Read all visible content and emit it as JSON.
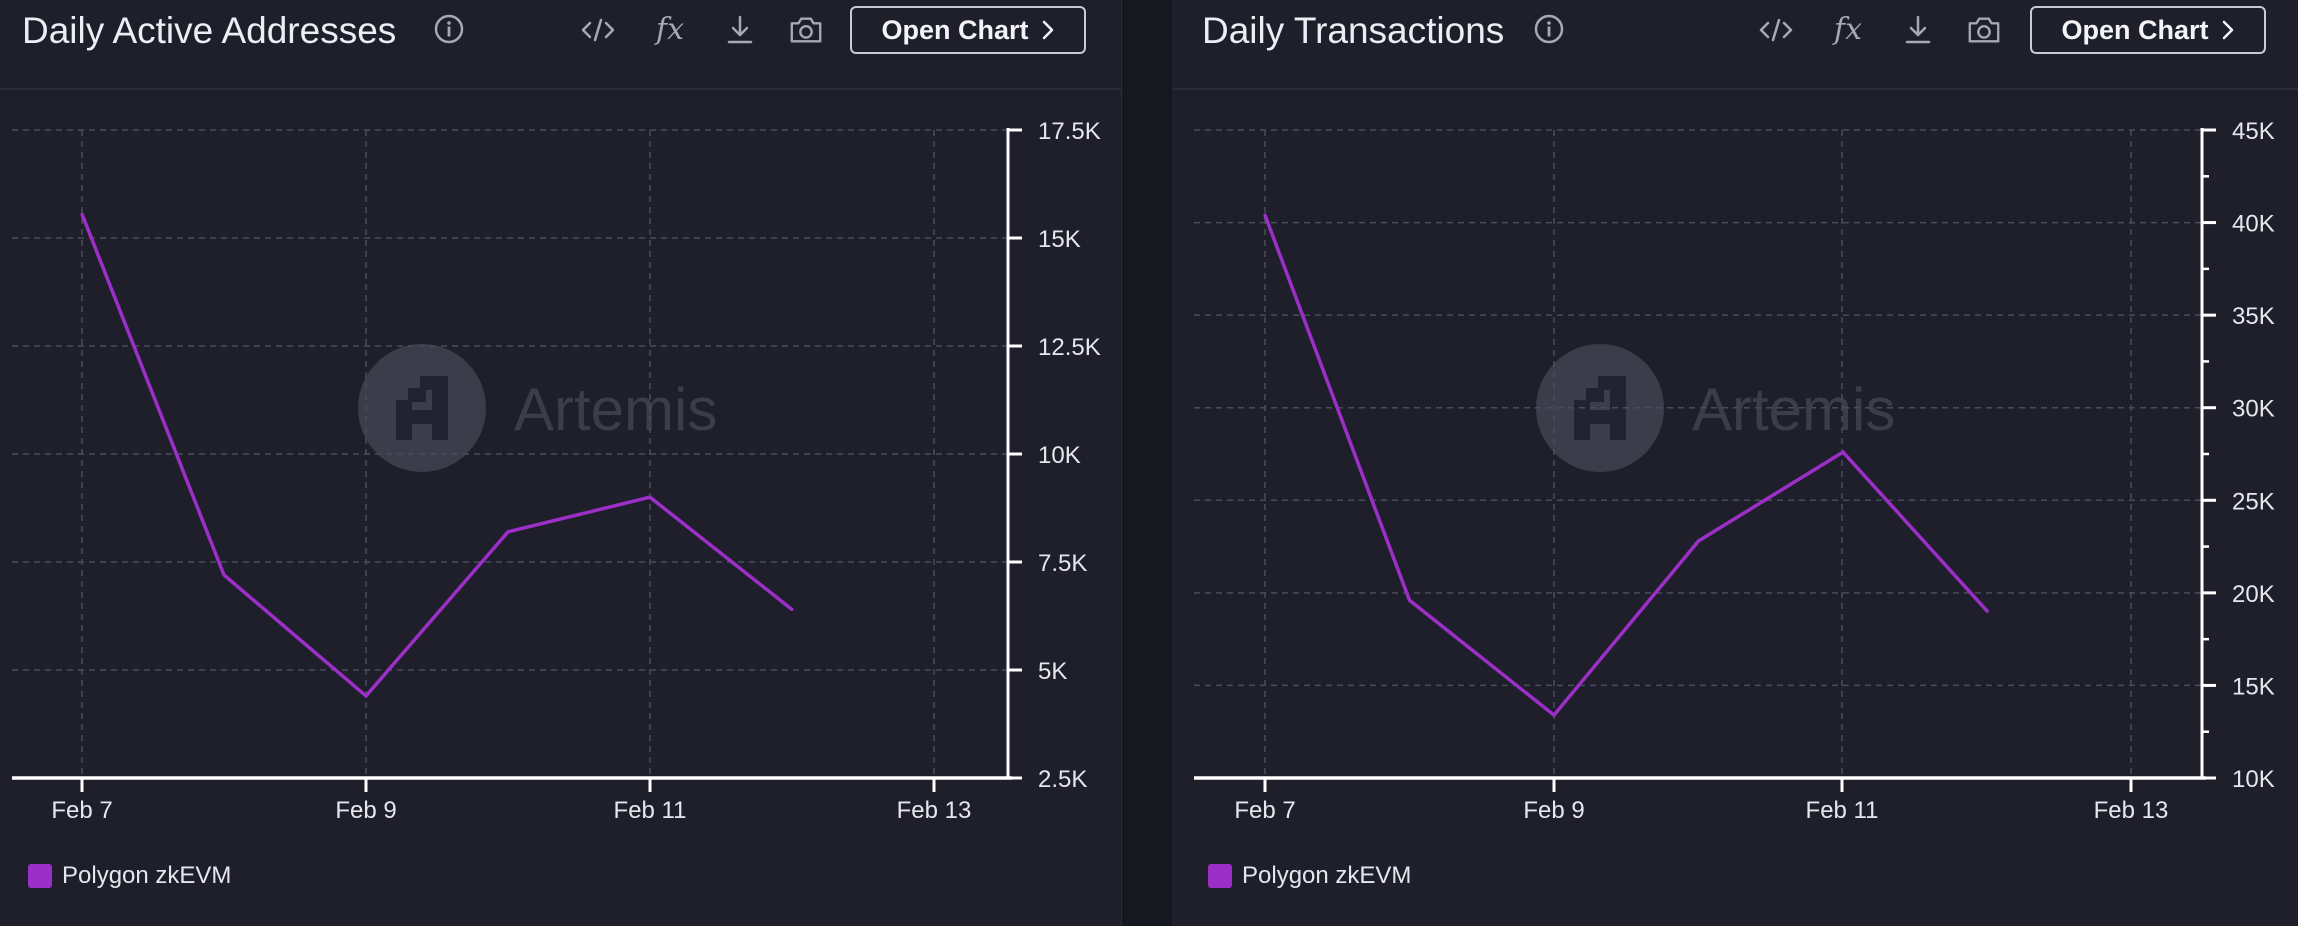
{
  "colors": {
    "series": "#9b2fc8",
    "grid": "#4a4c5c",
    "axis": "#ffffff",
    "panel_bg": "#1e1f2b",
    "watermark": "#3b3d4b"
  },
  "toolbar": {
    "icons": [
      "code-icon",
      "fx-icon",
      "download-icon",
      "camera-icon"
    ],
    "fx_label": "fx",
    "open_chart_label": "Open Chart"
  },
  "watermark": {
    "text": "Artemis"
  },
  "chart_data": [
    {
      "type": "line",
      "title": "Daily Active Addresses",
      "x": [
        "Feb 7",
        "Feb 8",
        "Feb 9",
        "Feb 10",
        "Feb 11",
        "Feb 12"
      ],
      "x_tick_labels": [
        "Feb 7",
        "Feb 9",
        "Feb 11",
        "Feb 13"
      ],
      "xlim": [
        "Feb 6.75",
        "Feb 13.25"
      ],
      "series": [
        {
          "name": "Polygon zkEVM",
          "values": [
            15550,
            7200,
            4400,
            8200,
            9000,
            6400
          ]
        }
      ],
      "ylim": [
        2500,
        17500
      ],
      "y_ticks": [
        2500,
        5000,
        7500,
        10000,
        12500,
        15000,
        17500
      ],
      "y_tick_labels": [
        "2.5K",
        "5K",
        "7.5K",
        "10K",
        "12.5K",
        "15K",
        "17.5K"
      ],
      "y_axis_side": "right",
      "grid": true,
      "legend": "bottom-left"
    },
    {
      "type": "line",
      "title": "Daily Transactions",
      "x": [
        "Feb 7",
        "Feb 8",
        "Feb 9",
        "Feb 10",
        "Feb 11",
        "Feb 12"
      ],
      "x_tick_labels": [
        "Feb 7",
        "Feb 9",
        "Feb 11",
        "Feb 13"
      ],
      "xlim": [
        "Feb 6.75",
        "Feb 13.25"
      ],
      "series": [
        {
          "name": "Polygon zkEVM",
          "values": [
            40400,
            19600,
            13400,
            22800,
            27600,
            19000
          ]
        }
      ],
      "ylim": [
        10000,
        45000
      ],
      "y_ticks": [
        10000,
        15000,
        20000,
        25000,
        30000,
        35000,
        40000,
        45000
      ],
      "y_tick_labels": [
        "10K",
        "15K",
        "20K",
        "25K",
        "30K",
        "35K",
        "40K",
        "45K"
      ],
      "y_axis_side": "right",
      "grid": true,
      "legend": "bottom-left"
    }
  ]
}
